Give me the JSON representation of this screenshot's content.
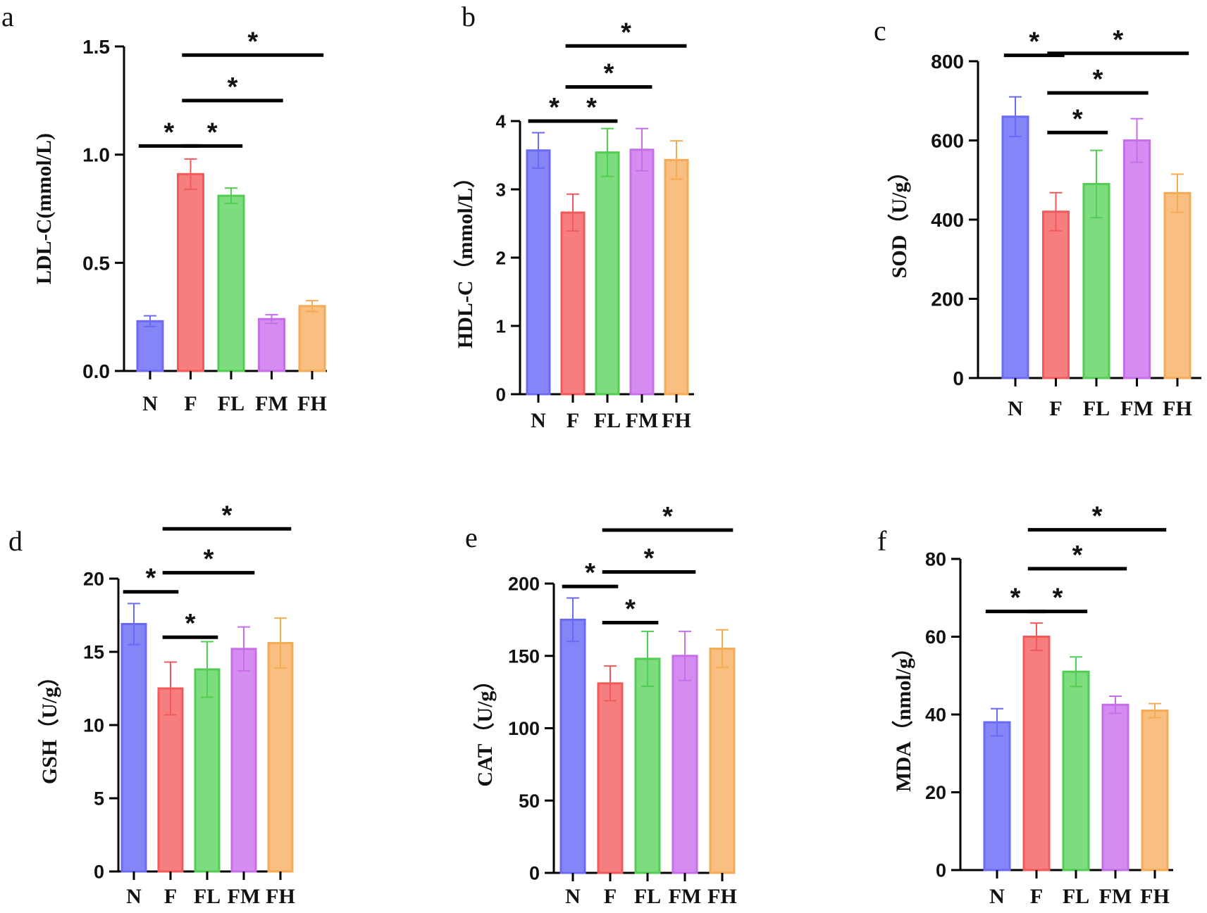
{
  "colors": {
    "N": {
      "stroke": "#6a6af5",
      "fill": "#8585f7"
    },
    "F": {
      "stroke": "#f25a5a",
      "fill": "#f77e7e"
    },
    "FL": {
      "stroke": "#52cc52",
      "fill": "#7ddc7d"
    },
    "FM": {
      "stroke": "#c56ee8",
      "fill": "#d58cf0"
    },
    "FH": {
      "stroke": "#f5aa55",
      "fill": "#f8bf80"
    },
    "axis": "#000000"
  },
  "chart_data": [
    {
      "panel": "a",
      "type": "bar",
      "categories": [
        "N",
        "F",
        "FL",
        "FM",
        "FH"
      ],
      "values": [
        0.23,
        0.91,
        0.81,
        0.24,
        0.3
      ],
      "errors": [
        0.025,
        0.07,
        0.035,
        0.02,
        0.025
      ],
      "ylabel": "LDL-C(mmol/L)",
      "ylim": [
        0,
        1.5
      ],
      "yticks": [
        0,
        0.5,
        1.0,
        1.5
      ],
      "ytick_labels": [
        "0.0",
        "0.5",
        "1.0",
        "1.5"
      ],
      "annotations": [
        {
          "from": "N",
          "to": "F",
          "level": 1.04,
          "text": "*"
        },
        {
          "from": "F",
          "to": "FL",
          "level": 1.04,
          "text": "*"
        },
        {
          "from": "F",
          "to": "FM",
          "level": 1.25,
          "text": "*"
        },
        {
          "from": "F",
          "to": "FH",
          "level": 1.46,
          "text": "*"
        }
      ]
    },
    {
      "panel": "b",
      "type": "bar",
      "categories": [
        "N",
        "F",
        "FL",
        "FM",
        "FH"
      ],
      "values": [
        3.57,
        2.66,
        3.54,
        3.58,
        3.43
      ],
      "errors": [
        0.26,
        0.27,
        0.35,
        0.31,
        0.28
      ],
      "ylabel": "HDL-C（mmol/L）",
      "ylim": [
        0,
        4
      ],
      "yticks": [
        0,
        1,
        2,
        3,
        4
      ],
      "ytick_labels": [
        "0",
        "1",
        "2",
        "3",
        "4"
      ],
      "annotations": [
        {
          "from": "N",
          "to": "F",
          "level": 4.0,
          "text": "*"
        },
        {
          "from": "F",
          "to": "FL",
          "level": 4.0,
          "text": "*"
        },
        {
          "from": "F",
          "to": "FM",
          "level": 4.5,
          "text": "*"
        },
        {
          "from": "F",
          "to": "FH",
          "level": 5.1,
          "text": "*"
        }
      ]
    },
    {
      "panel": "c",
      "type": "bar",
      "categories": [
        "N",
        "F",
        "FL",
        "FM",
        "FH"
      ],
      "values": [
        660,
        420,
        490,
        600,
        467
      ],
      "errors": [
        50,
        48,
        85,
        55,
        48
      ],
      "ylabel": "SOD（U/g）",
      "ylim": [
        0,
        800
      ],
      "yticks": [
        0,
        200,
        400,
        600,
        800
      ],
      "ytick_labels": [
        "0",
        "200",
        "400",
        "600",
        "800"
      ],
      "annotations": [
        {
          "from": "N",
          "to": "F",
          "level": 815,
          "text": "*"
        },
        {
          "from": "F",
          "to": "FL",
          "level": 620,
          "text": "*"
        },
        {
          "from": "F",
          "to": "FM",
          "level": 720,
          "text": "*"
        },
        {
          "from": "F",
          "to": "FH",
          "level": 820,
          "text": "*"
        }
      ]
    },
    {
      "panel": "d",
      "type": "bar",
      "categories": [
        "N",
        "F",
        "FL",
        "FM",
        "FH"
      ],
      "values": [
        16.9,
        12.5,
        13.8,
        15.2,
        15.6
      ],
      "errors": [
        1.4,
        1.8,
        1.9,
        1.5,
        1.7
      ],
      "ylabel": "GSH（U/g）",
      "ylim": [
        0,
        20
      ],
      "yticks": [
        0,
        5,
        10,
        15,
        20
      ],
      "ytick_labels": [
        "0",
        "5",
        "10",
        "15",
        "20"
      ],
      "annotations": [
        {
          "from": "N",
          "to": "F",
          "level": 19.1,
          "text": "*"
        },
        {
          "from": "F",
          "to": "FL",
          "level": 16.0,
          "text": "*"
        },
        {
          "from": "F",
          "to": "FM",
          "level": 20.4,
          "text": "*"
        },
        {
          "from": "F",
          "to": "FH",
          "level": 23.4,
          "text": "*"
        }
      ]
    },
    {
      "panel": "e",
      "type": "bar",
      "categories": [
        "N",
        "F",
        "FL",
        "FM",
        "FH"
      ],
      "values": [
        175,
        131,
        148,
        150,
        155
      ],
      "errors": [
        15,
        12,
        19,
        17,
        13
      ],
      "ylabel": "CAT（U/g）",
      "ylim": [
        0,
        200
      ],
      "yticks": [
        0,
        50,
        100,
        150,
        200
      ],
      "ytick_labels": [
        "0",
        "50",
        "100",
        "150",
        "200"
      ],
      "annotations": [
        {
          "from": "N",
          "to": "F",
          "level": 198,
          "text": "*"
        },
        {
          "from": "F",
          "to": "FL",
          "level": 173,
          "text": "*"
        },
        {
          "from": "F",
          "to": "FM",
          "level": 208,
          "text": "*"
        },
        {
          "from": "F",
          "to": "FH",
          "level": 237,
          "text": "*"
        }
      ]
    },
    {
      "panel": "f",
      "type": "bar",
      "categories": [
        "N",
        "F",
        "FL",
        "FM",
        "FH"
      ],
      "values": [
        38,
        60,
        51,
        42.5,
        41
      ],
      "errors": [
        3.5,
        3.5,
        3.8,
        2.2,
        1.8
      ],
      "ylabel": "MDA（nmol/g）",
      "ylim": [
        0,
        80
      ],
      "yticks": [
        0,
        20,
        40,
        60,
        80
      ],
      "ytick_labels": [
        "0",
        "20",
        "40",
        "60",
        "80"
      ],
      "annotations": [
        {
          "from": "N",
          "to": "F",
          "level": 66.5,
          "text": "*"
        },
        {
          "from": "F",
          "to": "FL",
          "level": 66.5,
          "text": "*"
        },
        {
          "from": "F",
          "to": "FM",
          "level": 77.5,
          "text": "*"
        },
        {
          "from": "F",
          "to": "FH",
          "level": 87.5,
          "text": "*"
        }
      ]
    }
  ]
}
